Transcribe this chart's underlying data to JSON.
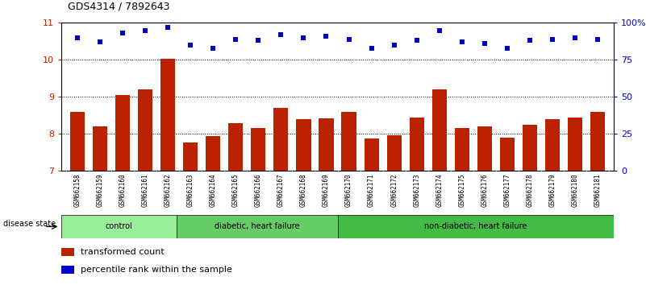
{
  "title": "GDS4314 / 7892643",
  "samples": [
    "GSM662158",
    "GSM662159",
    "GSM662160",
    "GSM662161",
    "GSM662162",
    "GSM662163",
    "GSM662164",
    "GSM662165",
    "GSM662166",
    "GSM662167",
    "GSM662168",
    "GSM662169",
    "GSM662170",
    "GSM662171",
    "GSM662172",
    "GSM662173",
    "GSM662174",
    "GSM662175",
    "GSM662176",
    "GSM662177",
    "GSM662178",
    "GSM662179",
    "GSM662180",
    "GSM662181"
  ],
  "bar_values": [
    8.6,
    8.2,
    9.05,
    9.2,
    10.02,
    7.77,
    7.95,
    8.3,
    8.15,
    8.7,
    8.4,
    8.42,
    8.6,
    7.88,
    7.97,
    8.45,
    9.2,
    8.15,
    8.2,
    7.9,
    8.25,
    8.4,
    8.45,
    8.6
  ],
  "percentile_values": [
    90,
    87,
    93,
    95,
    97,
    85,
    83,
    89,
    88,
    92,
    90,
    91,
    89,
    83,
    85,
    88,
    95,
    87,
    86,
    83,
    88,
    89,
    90,
    89
  ],
  "bar_color": "#bb2200",
  "point_color": "#0000cc",
  "ylim_left": [
    7,
    11
  ],
  "ylim_right": [
    0,
    100
  ],
  "yticks_left": [
    7,
    8,
    9,
    10,
    11
  ],
  "yticks_right": [
    0,
    25,
    50,
    75,
    100
  ],
  "ytick_labels_right": [
    "0",
    "25",
    "50",
    "75",
    "100%"
  ],
  "groups": [
    {
      "label": "control",
      "start": 0,
      "end": 4,
      "color": "#99ee99"
    },
    {
      "label": "diabetic, heart failure",
      "start": 5,
      "end": 11,
      "color": "#66cc66"
    },
    {
      "label": "non-diabetic, heart failure",
      "start": 12,
      "end": 23,
      "color": "#44bb44"
    }
  ],
  "disease_state_label": "disease state",
  "legend_bar_label": "transformed count",
  "legend_point_label": "percentile rank within the sample",
  "background_color": "#ffffff",
  "plot_bg_color": "#ffffff",
  "xtick_bg_color": "#cccccc"
}
